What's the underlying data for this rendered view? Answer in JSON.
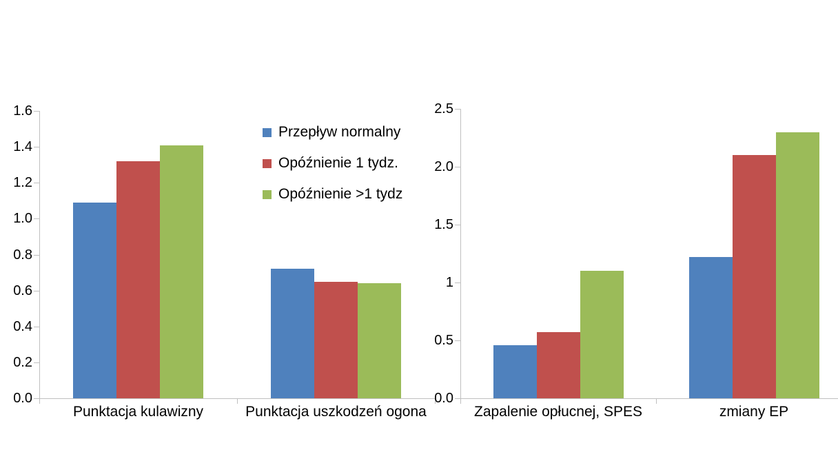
{
  "figure": {
    "background": "#ffffff",
    "axis_color": "#bfbfbf",
    "text_color": "#000000"
  },
  "legend": {
    "position": "between-charts-top",
    "items": [
      {
        "label": "Przepływ normalny",
        "color": "#4F81BD"
      },
      {
        "label": "Opóźnienie 1 tydz.",
        "color": "#C0504D"
      },
      {
        "label": "Opóźnienie >1 tydz",
        "color": "#9BBB59"
      }
    ]
  },
  "chart_data": [
    {
      "type": "bar",
      "title": "",
      "xlabel": "",
      "ylabel": "",
      "grid": false,
      "categories": [
        "Punktacja kulawizny",
        "Punktacja uszkodzeń ogona"
      ],
      "series": [
        {
          "name": "Przepływ normalny",
          "color": "#4F81BD",
          "values": [
            1.09,
            0.72
          ]
        },
        {
          "name": "Opóźnienie 1 tydz.",
          "color": "#C0504D",
          "values": [
            1.32,
            0.65
          ]
        },
        {
          "name": "Opóźnienie >1 tydz",
          "color": "#9BBB59",
          "values": [
            1.41,
            0.64
          ]
        }
      ],
      "ylim": [
        0,
        1.6
      ],
      "yticks": [
        {
          "label": "0.0",
          "value": 0.0
        },
        {
          "label": "0.2",
          "value": 0.2
        },
        {
          "label": "0.4",
          "value": 0.4
        },
        {
          "label": "0.6",
          "value": 0.6
        },
        {
          "label": "0.8",
          "value": 0.8
        },
        {
          "label": "1.0",
          "value": 1.0
        },
        {
          "label": "1.2",
          "value": 1.2
        },
        {
          "label": "1.4",
          "value": 1.4
        },
        {
          "label": "1.6",
          "value": 1.6
        }
      ]
    },
    {
      "type": "bar",
      "title": "",
      "xlabel": "",
      "ylabel": "",
      "grid": false,
      "categories": [
        "Zapalenie opłucnej, SPES",
        "zmiany EP"
      ],
      "series": [
        {
          "name": "Przepływ normalny",
          "color": "#4F81BD",
          "values": [
            0.46,
            1.22
          ]
        },
        {
          "name": "Opóźnienie 1 tydz.",
          "color": "#C0504D",
          "values": [
            0.57,
            2.1
          ]
        },
        {
          "name": "Opóźnienie >1 tydz",
          "color": "#9BBB59",
          "values": [
            1.1,
            2.3
          ]
        }
      ],
      "ylim": [
        0,
        2.5
      ],
      "yticks": [
        {
          "label": "0.0",
          "value": 0.0
        },
        {
          "label": "0.5",
          "value": 0.5
        },
        {
          "label": "1",
          "value": 1.0
        },
        {
          "label": "1.5",
          "value": 1.5
        },
        {
          "label": "2.0",
          "value": 2.0
        },
        {
          "label": "2.5",
          "value": 2.5
        }
      ]
    }
  ]
}
